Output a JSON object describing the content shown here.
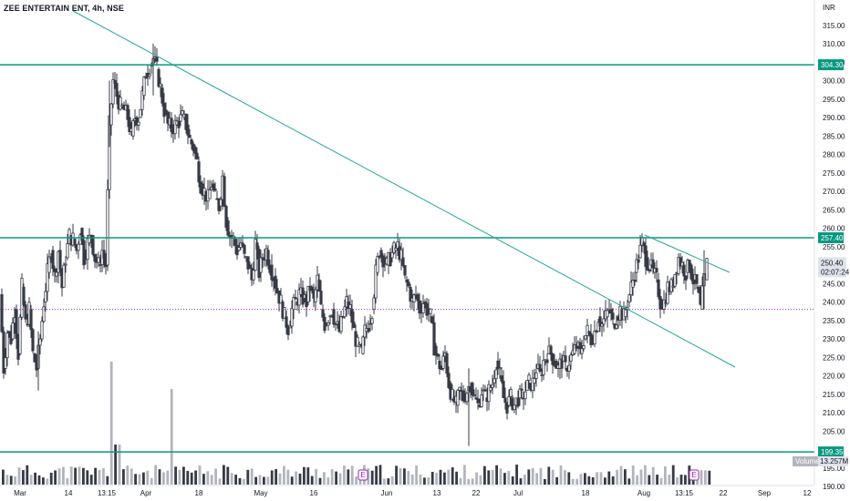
{
  "header": {
    "title": "ZEE ENTERTAIN ENT, 4h, NSE",
    "currency": "INR"
  },
  "colors": {
    "candle": "#363a45",
    "hline": "#089981",
    "trend": "#26a69a",
    "dotted": "#9c27b0",
    "volume": "#b2b5be",
    "event": "#9c27b0"
  },
  "chart_data": {
    "type": "candlestick",
    "y_axis": {
      "ticks": [
        "315.00",
        "310.00",
        "305.00",
        "300.00",
        "295.00",
        "290.00",
        "285.00",
        "280.00",
        "275.00",
        "270.00",
        "265.00",
        "260.00",
        "255.00",
        "250.00",
        "245.00",
        "240.00",
        "235.00",
        "230.00",
        "225.00",
        "220.00",
        "215.00",
        "210.00",
        "205.00",
        "195.00",
        "190.00"
      ],
      "range": [
        190,
        318
      ]
    },
    "x_axis": {
      "labels": [
        "Mar",
        "14",
        "13:15",
        "Apr",
        "18",
        "May",
        "16",
        "Jun",
        "13",
        "22",
        "Jul",
        "18",
        "Aug",
        "13:15",
        "22",
        "Sep",
        "12"
      ]
    },
    "horizontal_lines": [
      {
        "price": 304.3,
        "label": "304.30"
      },
      {
        "price": 257.4,
        "label": "257.40"
      },
      {
        "price": 199.35,
        "label": "199.35"
      }
    ],
    "current_price": {
      "price": 250.4,
      "label": "250.40",
      "countdown": "02:07:24"
    },
    "dotted_line_price": 238,
    "trendlines": [
      {
        "from": [
          "Feb-20",
          318
        ],
        "to": [
          "Aug-22",
          222.5
        ]
      },
      {
        "from": [
          "Aug-1",
          258
        ],
        "to": [
          "Aug-22",
          246.5
        ]
      }
    ],
    "volume": {
      "label": "Volume",
      "value": "13.257M"
    },
    "events": [
      "E",
      "E",
      "E"
    ],
    "price_path": [
      [
        0,
        242
      ],
      [
        4,
        222
      ],
      [
        8,
        232
      ],
      [
        12,
        230
      ],
      [
        16,
        238
      ],
      [
        20,
        226
      ],
      [
        24,
        244
      ],
      [
        28,
        234
      ],
      [
        32,
        238
      ],
      [
        36,
        226
      ],
      [
        40,
        222
      ],
      [
        44,
        230
      ],
      [
        48,
        240
      ],
      [
        52,
        248
      ],
      [
        56,
        254
      ],
      [
        60,
        247
      ],
      [
        64,
        254
      ],
      [
        68,
        244
      ],
      [
        72,
        252
      ],
      [
        76,
        258
      ],
      [
        80,
        257
      ],
      [
        84,
        254
      ],
      [
        88,
        260
      ],
      [
        92,
        252
      ],
      [
        96,
        256
      ],
      [
        100,
        258
      ],
      [
        104,
        252
      ],
      [
        108,
        250
      ],
      [
        112,
        254
      ],
      [
        116,
        250
      ],
      [
        120,
        288
      ],
      [
        124,
        300
      ],
      [
        128,
        296
      ],
      [
        132,
        293
      ],
      [
        136,
        292
      ],
      [
        140,
        290
      ],
      [
        144,
        285
      ],
      [
        148,
        290
      ],
      [
        152,
        290
      ],
      [
        156,
        296
      ],
      [
        160,
        302
      ],
      [
        164,
        304
      ],
      [
        168,
        306
      ],
      [
        172,
        303
      ],
      [
        176,
        298
      ],
      [
        180,
        292
      ],
      [
        184,
        288
      ],
      [
        188,
        287
      ],
      [
        192,
        288
      ],
      [
        196,
        289
      ],
      [
        200,
        290
      ],
      [
        204,
        288
      ],
      [
        208,
        284
      ],
      [
        212,
        282
      ],
      [
        216,
        278
      ],
      [
        220,
        272
      ],
      [
        224,
        270
      ],
      [
        228,
        268
      ],
      [
        232,
        272
      ],
      [
        236,
        268
      ],
      [
        240,
        266
      ],
      [
        244,
        274
      ],
      [
        248,
        262
      ],
      [
        252,
        258
      ],
      [
        256,
        257
      ],
      [
        260,
        254
      ],
      [
        264,
        256
      ],
      [
        268,
        252
      ],
      [
        272,
        250
      ],
      [
        276,
        246
      ],
      [
        280,
        256
      ],
      [
        284,
        248
      ],
      [
        288,
        252
      ],
      [
        292,
        254
      ],
      [
        296,
        250
      ],
      [
        300,
        247
      ],
      [
        304,
        243
      ],
      [
        308,
        240
      ],
      [
        312,
        236
      ],
      [
        316,
        233
      ],
      [
        320,
        238
      ],
      [
        324,
        240
      ],
      [
        328,
        242
      ],
      [
        332,
        241
      ],
      [
        336,
        240
      ],
      [
        340,
        244
      ],
      [
        344,
        240
      ],
      [
        348,
        246
      ],
      [
        352,
        238
      ],
      [
        356,
        234
      ],
      [
        360,
        236
      ],
      [
        364,
        238
      ],
      [
        368,
        234
      ],
      [
        372,
        232
      ],
      [
        376,
        236
      ],
      [
        380,
        240
      ],
      [
        384,
        238
      ],
      [
        388,
        232
      ],
      [
        392,
        228
      ],
      [
        396,
        226
      ],
      [
        400,
        232
      ],
      [
        404,
        234
      ],
      [
        408,
        238
      ],
      [
        412,
        248
      ],
      [
        416,
        254
      ],
      [
        420,
        252
      ],
      [
        424,
        250
      ],
      [
        428,
        252
      ],
      [
        432,
        254
      ],
      [
        436,
        255
      ],
      [
        440,
        252
      ],
      [
        444,
        246
      ],
      [
        448,
        244
      ],
      [
        452,
        240
      ],
      [
        456,
        242
      ],
      [
        460,
        238
      ],
      [
        464,
        240
      ],
      [
        468,
        238
      ],
      [
        472,
        236
      ],
      [
        476,
        228
      ],
      [
        480,
        224
      ],
      [
        484,
        222
      ],
      [
        488,
        226
      ],
      [
        492,
        218
      ],
      [
        496,
        214
      ],
      [
        500,
        212
      ],
      [
        504,
        216
      ],
      [
        508,
        214
      ],
      [
        512,
        216
      ],
      [
        516,
        218
      ],
      [
        520,
        214
      ],
      [
        524,
        212
      ],
      [
        528,
        216
      ],
      [
        532,
        214
      ],
      [
        536,
        216
      ],
      [
        540,
        218
      ],
      [
        544,
        224
      ],
      [
        548,
        220
      ],
      [
        552,
        214
      ],
      [
        556,
        212
      ],
      [
        560,
        214
      ],
      [
        564,
        212
      ],
      [
        568,
        214
      ],
      [
        572,
        214
      ],
      [
        576,
        216
      ],
      [
        580,
        218
      ],
      [
        584,
        218
      ],
      [
        588,
        222
      ],
      [
        592,
        220
      ],
      [
        596,
        224
      ],
      [
        600,
        226
      ],
      [
        604,
        226
      ],
      [
        608,
        224
      ],
      [
        612,
        222
      ],
      [
        616,
        224
      ],
      [
        620,
        222
      ],
      [
        624,
        224
      ],
      [
        628,
        226
      ],
      [
        632,
        228
      ],
      [
        636,
        226
      ],
      [
        640,
        230
      ],
      [
        644,
        232
      ],
      [
        648,
        230
      ],
      [
        652,
        232
      ],
      [
        656,
        236
      ],
      [
        660,
        234
      ],
      [
        664,
        236
      ],
      [
        668,
        238
      ],
      [
        672,
        234
      ],
      [
        676,
        236
      ],
      [
        680,
        238
      ],
      [
        684,
        236
      ],
      [
        688,
        240
      ],
      [
        692,
        244
      ],
      [
        696,
        248
      ],
      [
        700,
        252
      ],
      [
        704,
        256
      ],
      [
        708,
        252
      ],
      [
        712,
        250
      ],
      [
        716,
        248
      ],
      [
        720,
        246
      ],
      [
        724,
        240
      ],
      [
        728,
        240
      ],
      [
        732,
        244
      ],
      [
        736,
        244
      ],
      [
        740,
        248
      ],
      [
        744,
        252
      ],
      [
        748,
        250
      ],
      [
        752,
        248
      ],
      [
        756,
        250
      ],
      [
        760,
        246
      ],
      [
        764,
        244
      ],
      [
        768,
        238
      ],
      [
        772,
        246
      ],
      [
        775,
        250.4
      ]
    ]
  }
}
